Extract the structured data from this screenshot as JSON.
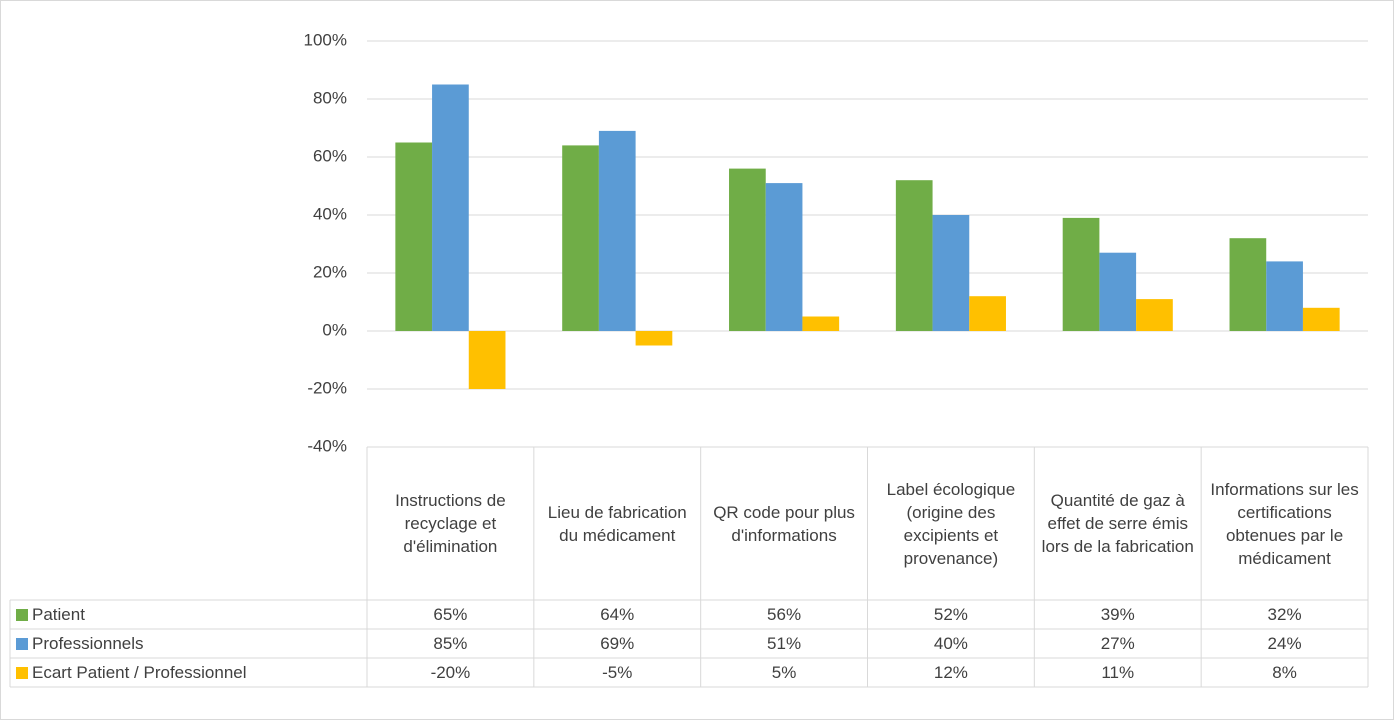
{
  "chart_data": {
    "type": "bar",
    "categories": [
      "Instructions de recyclage et d'élimination",
      "Lieu de fabrication du médicament",
      "QR code pour plus d'informations",
      "Label écologique (origine des excipients et provenance)",
      "Quantité de gaz à effet de serre émis lors de la fabrication",
      "Informations sur les certifications obtenues par le médicament"
    ],
    "series": [
      {
        "name": "Patient",
        "color": "#70ad47",
        "values": [
          65,
          64,
          56,
          52,
          39,
          32
        ],
        "value_labels": [
          "65%",
          "64%",
          "56%",
          "52%",
          "39%",
          "32%"
        ]
      },
      {
        "name": "Professionnels",
        "color": "#5b9bd5",
        "values": [
          85,
          69,
          51,
          40,
          27,
          24
        ],
        "value_labels": [
          "85%",
          "69%",
          "51%",
          "40%",
          "27%",
          "24%"
        ]
      },
      {
        "name": "Ecart Patient / Professionnel",
        "color": "#ffc000",
        "values": [
          -20,
          -5,
          5,
          12,
          11,
          8
        ],
        "value_labels": [
          "-20%",
          "-5%",
          "5%",
          "12%",
          "11%",
          "8%"
        ]
      }
    ],
    "ylim": [
      -40,
      100
    ],
    "yticks": [
      {
        "value": -40,
        "label": "-40%"
      },
      {
        "value": -20,
        "label": "-20%"
      },
      {
        "value": 0,
        "label": "0%"
      },
      {
        "value": 20,
        "label": "20%"
      },
      {
        "value": 40,
        "label": "40%"
      },
      {
        "value": 60,
        "label": "60%"
      },
      {
        "value": 80,
        "label": "80%"
      },
      {
        "value": 100,
        "label": "100%"
      }
    ],
    "grid": true
  }
}
